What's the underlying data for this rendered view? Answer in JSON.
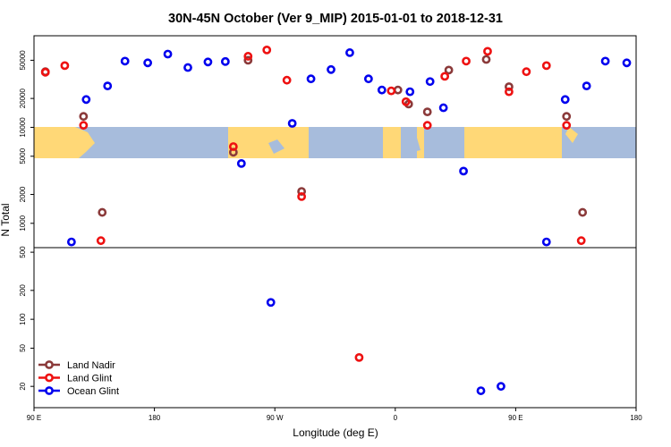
{
  "chart_data": {
    "type": "scatter",
    "title": "30N-45N October (Ver 9_MIP)   2015-01-01 to 2018-12-31",
    "xlabel": "Longitude (deg E)",
    "ylabel": "N Total",
    "x_ticks": [
      {
        "value": 0,
        "label": "90 E"
      },
      {
        "value": 90,
        "label": "180"
      },
      {
        "value": 180,
        "label": "90 W"
      },
      {
        "value": 270,
        "label": "0"
      },
      {
        "value": 360,
        "label": "90 E"
      },
      {
        "value": 450,
        "label": "180"
      }
    ],
    "x_range": [
      0,
      450
    ],
    "y_scale": "log",
    "y_ticks": [
      20,
      50,
      100,
      200,
      500,
      1000,
      2000,
      5000,
      10000,
      20000,
      50000
    ],
    "y_range": [
      12,
      90000
    ],
    "map_band_lat_range": "30N-45N",
    "legend_position": "bottom-left",
    "series": [
      {
        "name": "Land Nadir",
        "color": "#8b3a3a",
        "points": [
          [
            8.5,
            38000
          ],
          [
            37,
            13000
          ],
          [
            51,
            1300
          ],
          [
            149,
            5500
          ],
          [
            160,
            50000
          ],
          [
            200,
            2150
          ],
          [
            272,
            24500
          ],
          [
            280,
            17500
          ],
          [
            294,
            14500
          ],
          [
            310,
            39500
          ],
          [
            338,
            51000
          ],
          [
            355,
            26500
          ],
          [
            398,
            13000
          ],
          [
            410,
            1300
          ]
        ]
      },
      {
        "name": "Land Glint",
        "color": "#ee1111",
        "points": [
          [
            8.5,
            37500
          ],
          [
            23,
            44000
          ],
          [
            37,
            10500
          ],
          [
            50,
            660
          ],
          [
            149,
            6300
          ],
          [
            160,
            55000
          ],
          [
            174,
            64000
          ],
          [
            189,
            31000
          ],
          [
            200,
            1900
          ],
          [
            243,
            40
          ],
          [
            267,
            24000
          ],
          [
            278,
            18500
          ],
          [
            294,
            10500
          ],
          [
            307,
            34000
          ],
          [
            323,
            49000
          ],
          [
            339,
            62000
          ],
          [
            355,
            23500
          ],
          [
            368,
            38000
          ],
          [
            383,
            44000
          ],
          [
            398,
            10500
          ],
          [
            409,
            660
          ]
        ]
      },
      {
        "name": "Ocean Glint",
        "color": "#0000ee",
        "points": [
          [
            28,
            640
          ],
          [
            39,
            19500
          ],
          [
            55,
            27000
          ],
          [
            68,
            49000
          ],
          [
            85,
            47000
          ],
          [
            100,
            58000
          ],
          [
            115,
            42000
          ],
          [
            130,
            48000
          ],
          [
            143,
            48500
          ],
          [
            155,
            4200
          ],
          [
            177,
            150
          ],
          [
            193,
            11000
          ],
          [
            207,
            32000
          ],
          [
            222,
            40000
          ],
          [
            236,
            60000
          ],
          [
            250,
            32000
          ],
          [
            260,
            24500
          ],
          [
            281,
            23500
          ],
          [
            296,
            30000
          ],
          [
            306,
            16000
          ],
          [
            321,
            3500
          ],
          [
            334,
            18
          ],
          [
            349,
            20
          ],
          [
            383,
            640
          ],
          [
            397,
            19500
          ],
          [
            413,
            27000
          ],
          [
            427,
            49000
          ],
          [
            443,
            47000
          ]
        ]
      }
    ]
  }
}
